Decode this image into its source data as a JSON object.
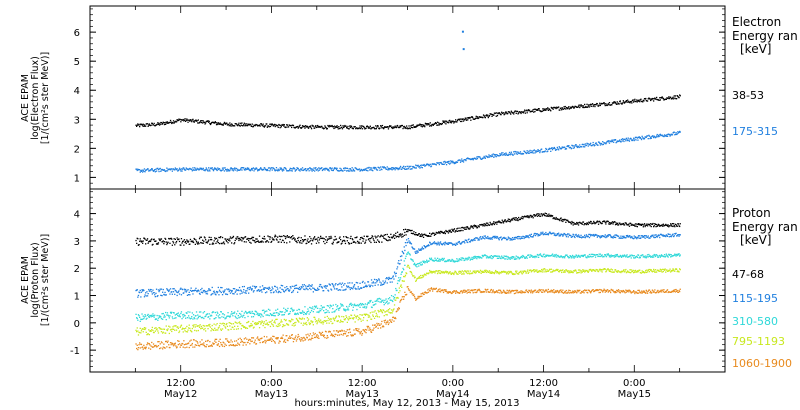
{
  "chart_data": [
    {
      "type": "scatter",
      "panel": "electron",
      "ylabel_lines": [
        "ACE EPAM",
        "log(Electron Flux)",
        "[1/(cm²s ster MeV)]"
      ],
      "ylim": [
        0.6,
        6.9
      ],
      "yticks": [
        "1",
        "2",
        "3",
        "4",
        "5",
        "6"
      ],
      "legend_title": [
        "Electron",
        "Energy ran",
        "[keV]"
      ],
      "series": [
        {
          "name": "38-53",
          "color": "#000000",
          "x": [
            0,
            3,
            6,
            12,
            18,
            24,
            30,
            36,
            42,
            48,
            54,
            60,
            66,
            72
          ],
          "y": [
            2.8,
            2.85,
            3.0,
            2.85,
            2.8,
            2.75,
            2.75,
            2.75,
            2.95,
            3.2,
            3.35,
            3.5,
            3.65,
            3.8
          ]
        },
        {
          "name": "175-315",
          "color": "#1f7fdf",
          "x": [
            0,
            6,
            12,
            18,
            24,
            30,
            36,
            42,
            48,
            54,
            60,
            66,
            72
          ],
          "y": [
            1.25,
            1.3,
            1.3,
            1.3,
            1.3,
            1.3,
            1.35,
            1.55,
            1.8,
            1.95,
            2.15,
            2.35,
            2.55
          ]
        }
      ],
      "outliers": [
        {
          "x": 43.2,
          "y": 6.05,
          "color": "#1f7fdf"
        },
        {
          "x": 43.3,
          "y": 5.45,
          "color": "#1f7fdf"
        }
      ]
    },
    {
      "type": "scatter",
      "panel": "proton",
      "ylabel_lines": [
        "ACE EPAM",
        "log(Proton Flux)",
        "[1/(cm²s ster MeV)]"
      ],
      "ylim": [
        -1.8,
        4.9
      ],
      "yticks": [
        "-1",
        "0",
        "1",
        "2",
        "3",
        "4"
      ],
      "legend_title": [
        "Proton",
        "Energy ran",
        "[keV]"
      ],
      "series": [
        {
          "name": "47-68",
          "color": "#000000",
          "x": [
            0,
            6,
            12,
            18,
            24,
            30,
            34,
            36,
            38,
            42,
            46,
            50,
            54,
            58,
            62,
            66,
            72
          ],
          "y": [
            3.0,
            3.0,
            3.05,
            3.1,
            3.05,
            3.05,
            3.15,
            3.4,
            3.2,
            3.4,
            3.6,
            3.8,
            4.0,
            3.65,
            3.7,
            3.6,
            3.6
          ]
        },
        {
          "name": "115-195",
          "color": "#1f7fdf",
          "x": [
            0,
            6,
            12,
            18,
            24,
            30,
            34,
            36,
            37,
            39,
            42,
            46,
            50,
            54,
            58,
            62,
            66,
            72
          ],
          "y": [
            1.1,
            1.15,
            1.2,
            1.25,
            1.3,
            1.4,
            1.6,
            3.1,
            2.6,
            2.95,
            2.9,
            3.15,
            3.1,
            3.3,
            3.2,
            3.2,
            3.15,
            3.25
          ]
        },
        {
          "name": "310-580",
          "color": "#2ed8d8",
          "x": [
            0,
            6,
            12,
            18,
            24,
            30,
            34,
            36,
            37,
            39,
            42,
            46,
            50,
            54,
            58,
            62,
            66,
            72
          ],
          "y": [
            0.2,
            0.3,
            0.3,
            0.4,
            0.5,
            0.65,
            0.9,
            2.6,
            2.1,
            2.35,
            2.3,
            2.45,
            2.4,
            2.5,
            2.45,
            2.5,
            2.45,
            2.5
          ]
        },
        {
          "name": "795-1193",
          "color": "#c8e81e",
          "x": [
            0,
            6,
            12,
            18,
            24,
            30,
            34,
            36,
            37,
            39,
            42,
            46,
            50,
            54,
            58,
            62,
            66,
            72
          ],
          "y": [
            -0.3,
            -0.2,
            -0.1,
            0.0,
            0.1,
            0.2,
            0.5,
            2.1,
            1.6,
            1.9,
            1.85,
            1.9,
            1.85,
            1.95,
            1.9,
            1.95,
            1.9,
            1.95
          ]
        },
        {
          "name": "1060-1900",
          "color": "#e88a1e",
          "x": [
            0,
            6,
            12,
            18,
            24,
            30,
            34,
            36,
            37,
            39,
            42,
            46,
            50,
            54,
            58,
            62,
            66,
            72
          ],
          "y": [
            -0.85,
            -0.75,
            -0.7,
            -0.6,
            -0.45,
            -0.3,
            0.1,
            1.3,
            0.9,
            1.25,
            1.15,
            1.2,
            1.15,
            1.2,
            1.15,
            1.2,
            1.15,
            1.2
          ]
        }
      ]
    }
  ],
  "x_axis": {
    "xlim": [
      -6,
      78
    ],
    "ticks": [
      {
        "x": 6,
        "line1": "12:00",
        "line2": "May12"
      },
      {
        "x": 18,
        "line1": "0:00",
        "line2": "May13"
      },
      {
        "x": 30,
        "line1": "12:00",
        "line2": "May13"
      },
      {
        "x": 42,
        "line1": "0:00",
        "line2": "May14"
      },
      {
        "x": 54,
        "line1": "12:00",
        "line2": "May14"
      },
      {
        "x": 66,
        "line1": "0:00",
        "line2": "May15"
      }
    ],
    "xlabel": "hours:minutes, May 12, 2013 - May 15, 2013"
  }
}
